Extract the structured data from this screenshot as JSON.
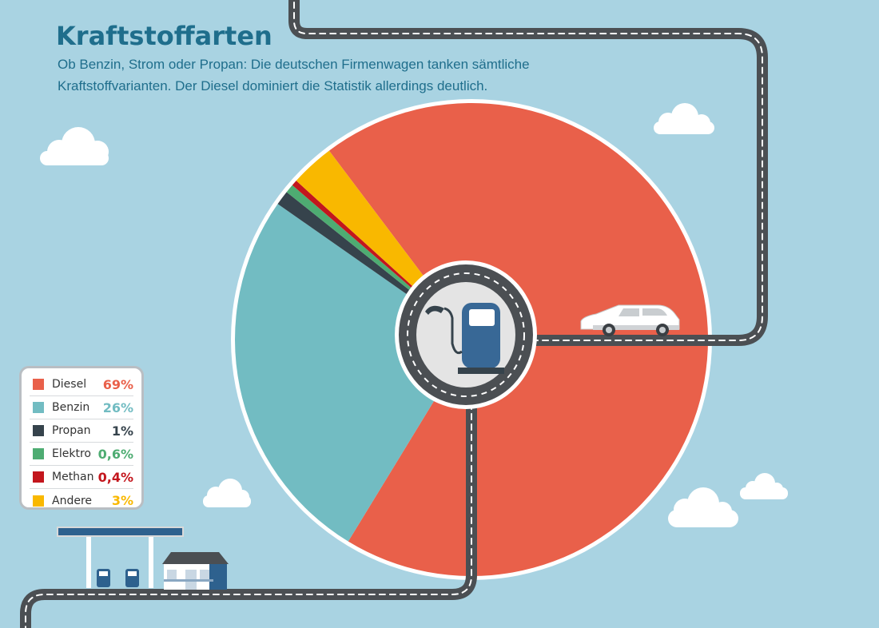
{
  "header": {
    "title": "Kraftstoffarten",
    "subtitle_line1": "Ob Benzin, Strom oder Propan: Die deutschen Firmenwagen tanken sämtliche",
    "subtitle_line2": "Kraftstoffvarianten. Der Diesel dominiert die Statistik allerdings deutlich."
  },
  "chart_data": {
    "type": "pie",
    "title": "Kraftstoffarten",
    "slices": [
      {
        "label": "Diesel",
        "value": 69,
        "value_label": "69%",
        "color": "#e9604a"
      },
      {
        "label": "Benzin",
        "value": 26,
        "value_label": "26%",
        "color": "#72bcc2"
      },
      {
        "label": "Propan",
        "value": 1,
        "value_label": "1%",
        "color": "#36434c"
      },
      {
        "label": "Elektro",
        "value": 0.6,
        "value_label": "0,6%",
        "color": "#4eac72"
      },
      {
        "label": "Methan",
        "value": 0.4,
        "value_label": "0,4%",
        "color": "#c3161d"
      },
      {
        "label": "Andere",
        "value": 3,
        "value_label": "3%",
        "color": "#f9b800"
      }
    ],
    "legend_position": "bottom-left"
  },
  "colors": {
    "background": "#a9d3e2",
    "road": "#4b4f53",
    "accent": "#1f6e8c",
    "pump": "#386896"
  }
}
